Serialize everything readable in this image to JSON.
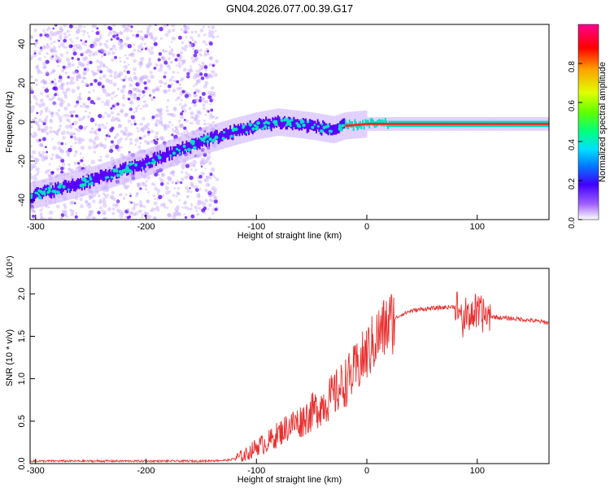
{
  "title": "GN04.2026.077.00.39.G17",
  "colors": {
    "snr_line": "#e83030",
    "spectrum_core": "#ff2a2a",
    "spectrum_mid": "#00e0c0",
    "spectrum_low": "#5a00ff",
    "spectrum_faint": "#c8a8ff"
  },
  "chart_data": [
    {
      "type": "heatmap",
      "xlabel": "Height of straight line (km)",
      "ylabel": "Frequency (Hz)",
      "xlim": [
        -305,
        165
      ],
      "ylim": [
        -50,
        50
      ],
      "xticks": [
        -300,
        -200,
        -100,
        0,
        100
      ],
      "yticks": [
        -40,
        -20,
        0,
        20,
        40
      ],
      "ridge": {
        "x": [
          -305,
          -250,
          -200,
          -150,
          -120,
          -100,
          -80,
          -50,
          -30,
          -20,
          0,
          20,
          50,
          80,
          100,
          120,
          165
        ],
        "frequency": [
          -38,
          -30,
          -21,
          -10,
          -5,
          -2,
          0,
          -2,
          -4,
          -2,
          -1,
          -1,
          -1,
          -1,
          -1,
          -1,
          -1
        ]
      },
      "colorbar": {
        "label": "Normalized spectral amplitude",
        "range": [
          0.0,
          1.0
        ],
        "ticks": [
          "0.0",
          "0.2",
          "0.4",
          "0.6",
          "0.8"
        ],
        "colors": [
          "#ffffff",
          "#a060ff",
          "#4000ff",
          "#0080ff",
          "#00e0ff",
          "#00ff80",
          "#60ff00",
          "#e0ff00",
          "#ffa000",
          "#ff0000",
          "#ff0090"
        ]
      },
      "grid": false
    },
    {
      "type": "line",
      "xlabel": "Height of straight line (km)",
      "ylabel": "SNR (10 * v/v)",
      "ylabel_multiplier": "(x10⁴)",
      "xlim": [
        -305,
        165
      ],
      "ylim": [
        0,
        2.3
      ],
      "xticks": [
        -300,
        -200,
        -100,
        0,
        100
      ],
      "yticks": [
        "0.0",
        "0.5",
        "1.0",
        "1.5",
        "2.0"
      ],
      "series": [
        {
          "x": [
            -305,
            -250,
            -200,
            -150,
            -125,
            -110,
            -100,
            -90,
            -80,
            -70,
            -60,
            -50,
            -40,
            -30,
            -20,
            -10,
            0,
            10,
            20,
            30,
            40,
            50,
            60,
            70,
            80,
            85,
            88,
            90,
            95,
            100,
            110,
            120,
            140,
            165
          ],
          "values": [
            0.03,
            0.03,
            0.03,
            0.03,
            0.04,
            0.1,
            0.2,
            0.25,
            0.35,
            0.45,
            0.5,
            0.6,
            0.7,
            0.8,
            0.95,
            1.1,
            1.3,
            1.5,
            1.65,
            1.75,
            1.8,
            1.82,
            1.83,
            1.84,
            1.85,
            1.8,
            1.6,
            1.75,
            1.78,
            1.76,
            1.74,
            1.72,
            1.7,
            1.66
          ]
        }
      ],
      "grid": false
    }
  ]
}
